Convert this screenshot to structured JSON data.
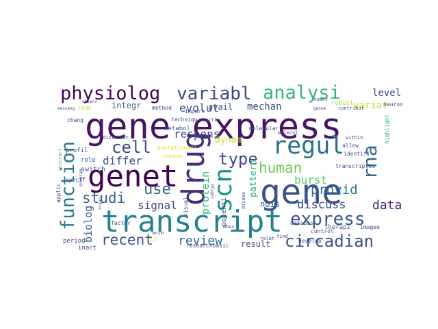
{
  "words": [
    {
      "text": "gene express",
      "color": "#471365"
    },
    {
      "text": "transcript",
      "color": "#26828e"
    },
    {
      "text": "gene",
      "color": "#3b528b"
    },
    {
      "text": "genet",
      "color": "#440154"
    },
    {
      "text": "physiolog",
      "color": "#440154"
    },
    {
      "text": "variabl",
      "color": "#3e4989"
    },
    {
      "text": "analysi",
      "color": "#35b779"
    },
    {
      "text": "regul",
      "color": "#2d708e"
    },
    {
      "text": "function",
      "color": "#2a788e"
    },
    {
      "text": "drug",
      "color": "#472d7b"
    },
    {
      "text": "express",
      "color": "#39568c"
    },
    {
      "text": "circadian",
      "color": "#3b528b"
    },
    {
      "text": "scn",
      "color": "#21918c"
    },
    {
      "text": "type",
      "color": "#3e4989"
    },
    {
      "text": "rna",
      "color": "#31688e"
    },
    {
      "text": "cell",
      "color": "#3e4989"
    },
    {
      "text": "human",
      "color": "#6ece58"
    },
    {
      "text": "recent",
      "color": "#3b528b"
    },
    {
      "text": "use",
      "color": "#31688e"
    },
    {
      "text": "studi",
      "color": "#31688e"
    },
    {
      "text": "provid",
      "color": "#2c728e"
    },
    {
      "text": "discuss",
      "color": "#3e4989"
    },
    {
      "text": "review",
      "color": "#31688e"
    },
    {
      "text": "data",
      "color": "#482878"
    },
    {
      "text": "biolog",
      "color": "#355f8d"
    },
    {
      "text": "protein",
      "color": "#2fb47c"
    },
    {
      "text": "burst",
      "color": "#5ec962"
    },
    {
      "text": "signal",
      "color": "#3e4989"
    },
    {
      "text": "respons",
      "color": "#3b528b"
    },
    {
      "text": "evolut",
      "color": "#3b528b"
    },
    {
      "text": "differ",
      "color": "#3e4989"
    },
    {
      "text": "dynam",
      "color": "#bddf26"
    },
    {
      "text": "level",
      "color": "#3e4989"
    },
    {
      "text": "integr",
      "color": "#31688e"
    },
    {
      "text": "avail",
      "color": "#3b528b"
    },
    {
      "text": "mechan",
      "color": "#3b528b"
    },
    {
      "text": "variat",
      "color": "#c2df23"
    },
    {
      "text": "pattern",
      "color": "#26ad81"
    },
    {
      "text": "nois",
      "color": "#3b528b"
    },
    {
      "text": "result",
      "color": "#3e4989"
    },
    {
      "text": "potenti",
      "color": "#3b528b"
    },
    {
      "text": "metabol",
      "color": "#3b528b"
    },
    {
      "text": "code",
      "color": "#bddf26"
    },
    {
      "text": "method",
      "color": "#3e4989"
    },
    {
      "text": "import",
      "color": "#3b528b"
    },
    {
      "text": "techniqu",
      "color": "#3e4989"
    },
    {
      "text": "activ",
      "color": "#3e4989"
    },
    {
      "text": "evolutionari",
      "color": "#d8e219"
    },
    {
      "text": "seqeunc",
      "color": "#d8e219"
    },
    {
      "text": "molecular",
      "color": "#3e4989"
    },
    {
      "text": "molecul",
      "color": "#3e4989"
    },
    {
      "text": "switch",
      "color": "#3b528b"
    },
    {
      "text": "distribut",
      "color": "#3e4989"
    },
    {
      "text": "within",
      "color": "#3e4989"
    },
    {
      "text": "allow",
      "color": "#3e4989"
    },
    {
      "text": "identifi",
      "color": "#3e4989"
    },
    {
      "text": "highlight",
      "color": "#35b779"
    },
    {
      "text": "profil",
      "color": "#3e4989"
    },
    {
      "text": "chang",
      "color": "#3e4989"
    },
    {
      "text": "specif",
      "color": "#3e4989"
    },
    {
      "text": "messeng",
      "color": "#3b528b"
    },
    {
      "text": "observ",
      "color": "#3e4989"
    },
    {
      "text": "robust",
      "color": "#addc30"
    },
    {
      "text": "howev",
      "color": "#3e4989"
    },
    {
      "text": "genom",
      "color": "#3e4989"
    },
    {
      "text": "contribut",
      "color": "#3e4989"
    },
    {
      "text": "neuron",
      "color": "#3e4989"
    },
    {
      "text": "role",
      "color": "#3e4989"
    },
    {
      "text": "interact",
      "color": "#35b779"
    },
    {
      "text": "applic",
      "color": "#3e4989"
    },
    {
      "text": "program",
      "color": "#3e4989"
    },
    {
      "text": "factor",
      "color": "#3e4989"
    },
    {
      "text": "period",
      "color": "#3e4989"
    },
    {
      "text": "inact",
      "color": "#3e4989"
    },
    {
      "text": "organ",
      "color": "#3e4989"
    },
    {
      "text": "visual",
      "color": "#3e4989"
    },
    {
      "text": "subtyp",
      "color": "#3e4989"
    },
    {
      "text": "diseas",
      "color": "#3e4989"
    },
    {
      "text": "mous",
      "color": "#3e4989"
    },
    {
      "text": "anim",
      "color": "#3e4989"
    },
    {
      "text": "util",
      "color": "#d8e219"
    },
    {
      "text": "databas",
      "color": "#3e4989"
    },
    {
      "text": "control",
      "color": "#3e4989"
    },
    {
      "text": "develop",
      "color": "#3e4989"
    },
    {
      "text": "find",
      "color": "#3e4989"
    },
    {
      "text": "relat",
      "color": "#3e4989"
    },
    {
      "text": "researchbasic",
      "color": "#3e4989"
    },
    {
      "text": "transcriptom",
      "color": "#3e4989"
    },
    {
      "text": "therapi",
      "color": "#3e4989"
    },
    {
      "text": "imageo",
      "color": "#3e4989"
    }
  ]
}
